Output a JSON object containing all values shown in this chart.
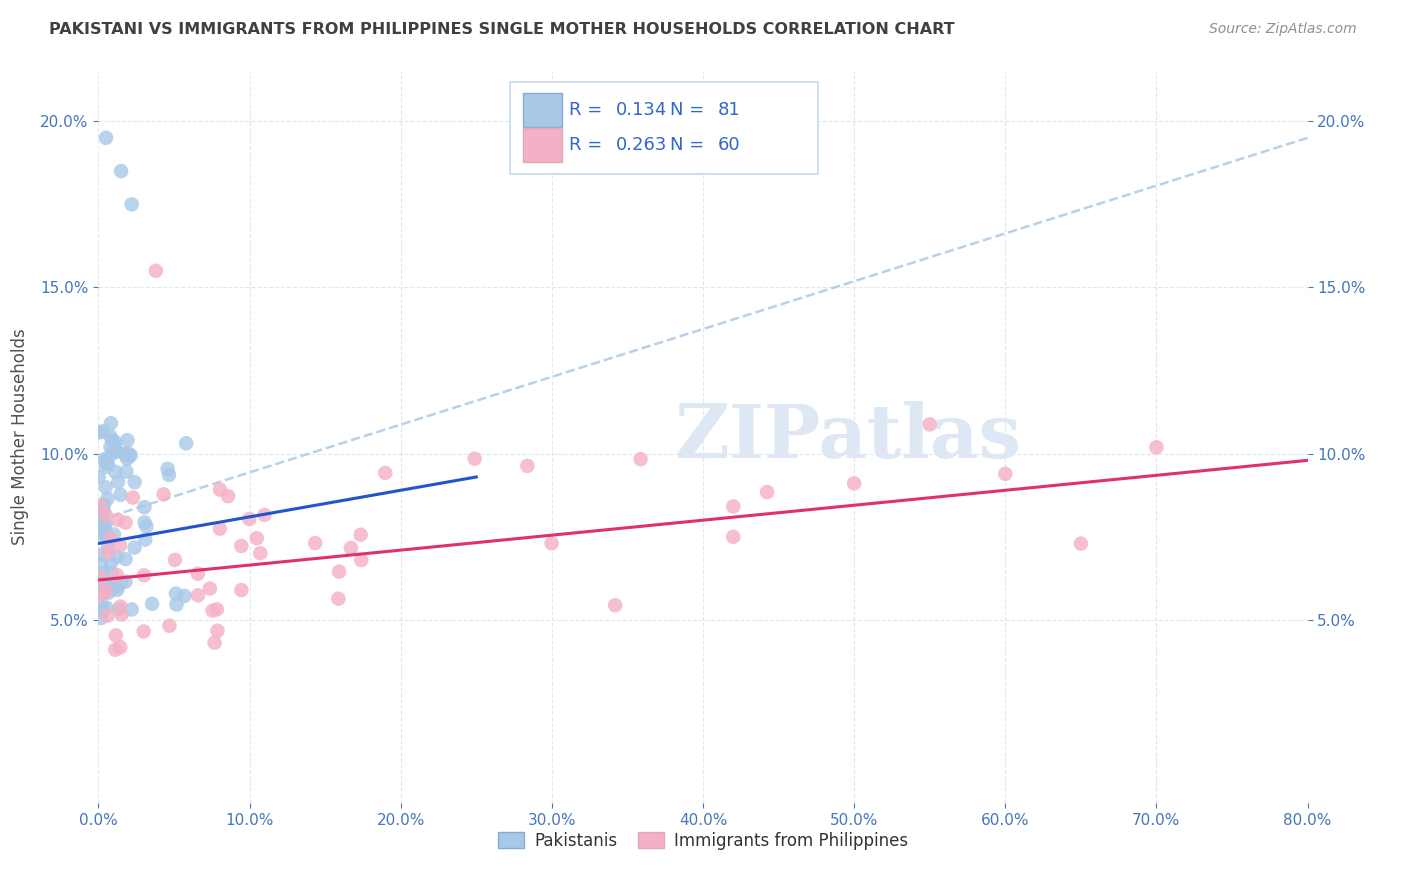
{
  "title": "PAKISTANI VS IMMIGRANTS FROM PHILIPPINES SINGLE MOTHER HOUSEHOLDS CORRELATION CHART",
  "source": "Source: ZipAtlas.com",
  "ylabel": "Single Mother Households",
  "xlim": [
    0.0,
    0.8
  ],
  "ylim": [
    -0.005,
    0.215
  ],
  "xticks": [
    0.0,
    0.1,
    0.2,
    0.3,
    0.4,
    0.5,
    0.6,
    0.7,
    0.8
  ],
  "yticks": [
    0.05,
    0.1,
    0.15,
    0.2
  ],
  "pakistani_R": 0.134,
  "pakistani_N": 81,
  "philippines_R": 0.263,
  "philippines_N": 60,
  "pakistani_color": "#a8c8e8",
  "philippines_color": "#f4b0c4",
  "pakistani_line_color": "#2255cc",
  "philippines_line_color": "#e03070",
  "dashed_line_color": "#b0cce8",
  "background_color": "#ffffff",
  "grid_color": "#dde8f0",
  "tick_color": "#4477bb",
  "title_color": "#404040",
  "legend_value_color": "#3366cc",
  "watermark_color": "#dde8f4",
  "watermark": "ZIPatlas",
  "pak_trend_x0": 0.0,
  "pak_trend_y0": 0.073,
  "pak_trend_x1": 0.25,
  "pak_trend_y1": 0.093,
  "phi_trend_x0": 0.0,
  "phi_trend_y0": 0.062,
  "phi_trend_x1": 0.8,
  "phi_trend_y1": 0.098,
  "dash_trend_x0": 0.0,
  "dash_trend_y0": 0.08,
  "dash_trend_x1": 0.8,
  "dash_trend_y1": 0.195,
  "legend_labels": [
    "Pakistanis",
    "Immigrants from Philippines"
  ]
}
